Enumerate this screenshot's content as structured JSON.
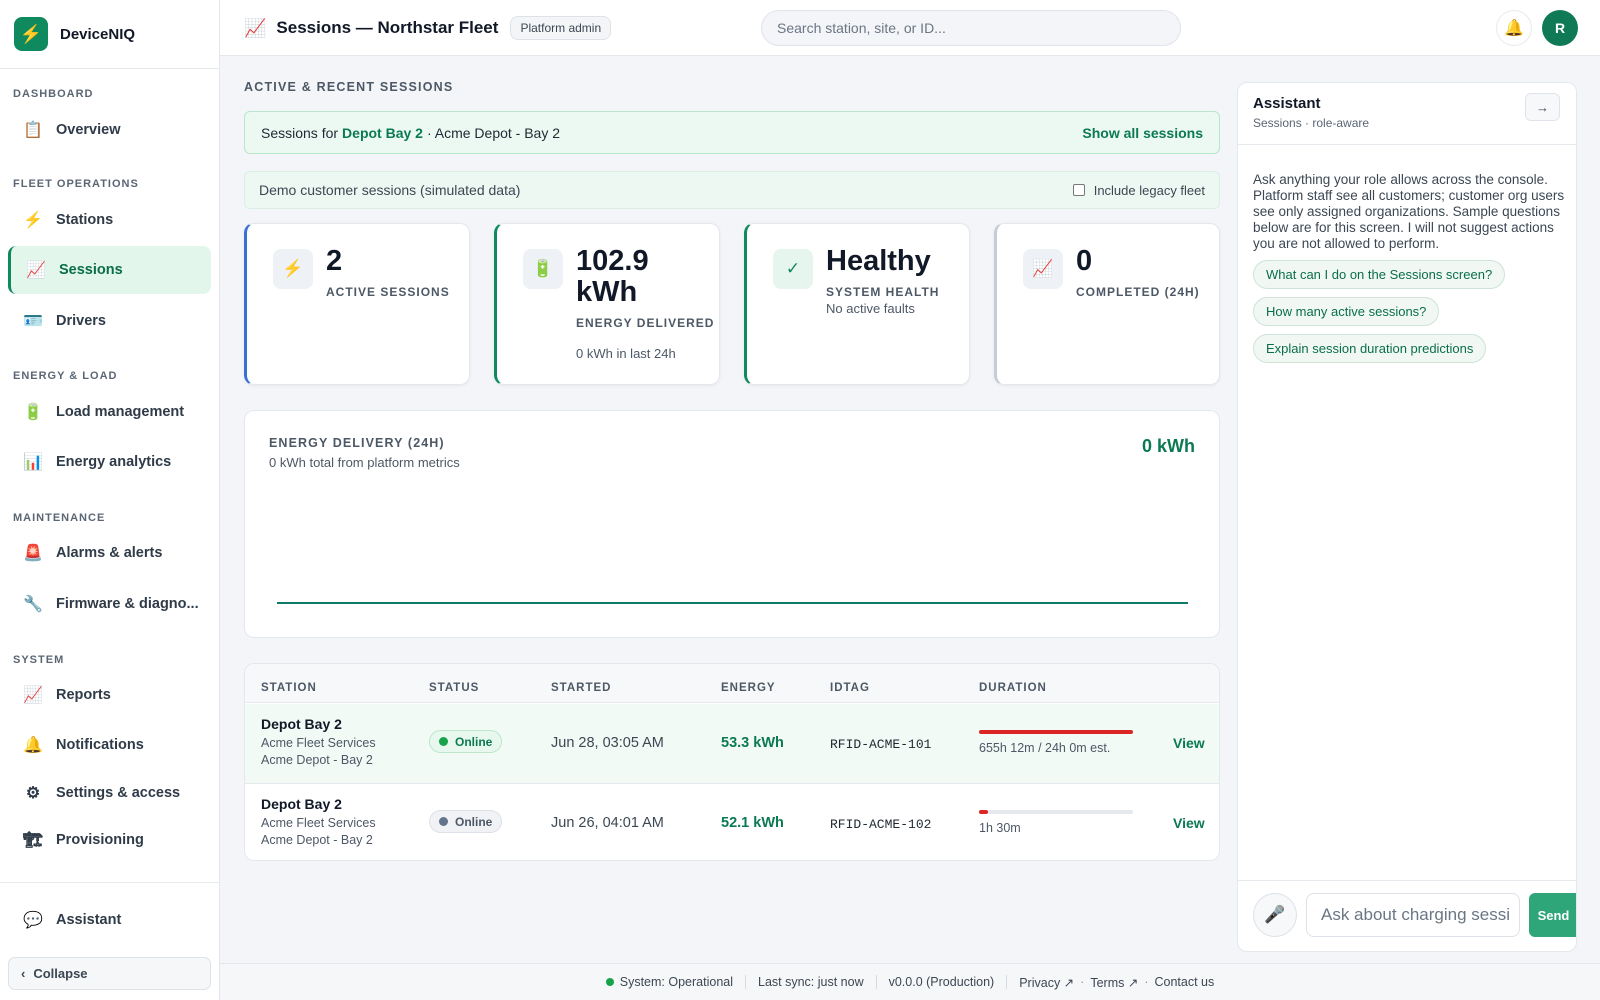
{
  "brand": {
    "name": "DeviceNIQ",
    "logo_icon": "⚡"
  },
  "sidebar": {
    "sections": [
      "DASHBOARD",
      "FLEET OPERATIONS",
      "ENERGY & LOAD",
      "MAINTENANCE",
      "SYSTEM"
    ],
    "items": [
      {
        "label": "Overview",
        "icon": "📋"
      },
      {
        "label": "Stations",
        "icon": "⚡"
      },
      {
        "label": "Sessions",
        "icon": "📈",
        "active": true
      },
      {
        "label": "Drivers",
        "icon": "🪪"
      },
      {
        "label": "Load management",
        "icon": "🔋"
      },
      {
        "label": "Energy analytics",
        "icon": "📊"
      },
      {
        "label": "Alarms & alerts",
        "icon": "🚨"
      },
      {
        "label": "Firmware & diagno...",
        "icon": "🔧"
      },
      {
        "label": "Reports",
        "icon": "📈"
      },
      {
        "label": "Notifications",
        "icon": "🔔"
      },
      {
        "label": "Settings & access",
        "icon": "⚙"
      },
      {
        "label": "Provisioning",
        "icon": "🏗"
      },
      {
        "label": "Assistant",
        "icon": "💬"
      }
    ],
    "collapse_label": "Collapse",
    "collapse_icon": "‹"
  },
  "topbar": {
    "title": "Sessions — Northstar Fleet",
    "title_icon": "📈",
    "role_badge": "Platform admin",
    "search_placeholder": "Search station, site, or ID...",
    "bell_icon": "🔔",
    "avatar_initial": "R"
  },
  "main": {
    "section_title": "ACTIVE & RECENT SESSIONS",
    "filter": {
      "prefix": "Sessions for",
      "station": "Depot Bay 2",
      "site": "· Acme Depot - Bay 2",
      "show_all": "Show all sessions"
    },
    "demo": {
      "text": "Demo customer sessions (simulated data)",
      "legacy_label": "Include legacy fleet"
    },
    "kpis": [
      {
        "icon": "⚡",
        "value": "2",
        "label": "ACTIVE SESSIONS",
        "sub": "",
        "accent": "#3b6fd6"
      },
      {
        "icon": "🔋",
        "value": "102.9 kWh",
        "label": "ENERGY DELIVERED",
        "sub": "0 kWh in last 24h",
        "accent": "#0f8a5f"
      },
      {
        "icon": "✓",
        "value": "Healthy",
        "label": "SYSTEM HEALTH",
        "sub": "No active faults",
        "accent": "#0f8a5f"
      },
      {
        "icon": "📈",
        "value": "0",
        "label": "COMPLETED (24H)",
        "sub": "",
        "accent": "#c5ced8"
      }
    ],
    "chart": {
      "title": "ENERGY DELIVERY (24H)",
      "subtitle": "0 kWh total from platform metrics",
      "total": "0 kWh"
    },
    "table": {
      "headers": [
        "STATION",
        "STATUS",
        "STARTED",
        "ENERGY",
        "IDTAG",
        "DURATION"
      ],
      "rows": [
        {
          "station": "Depot Bay 2",
          "org": "Acme Fleet Services",
          "site": "Acme Depot - Bay 2",
          "status": "Online",
          "status_color": "green",
          "started": "Jun 28, 03:05 AM",
          "energy": "53.3 kWh",
          "idtag": "RFID-ACME-101",
          "duration_progress": 1.0,
          "duration": "655h 12m / 24h 0m est.",
          "action": "View"
        },
        {
          "station": "Depot Bay 2",
          "org": "Acme Fleet Services",
          "site": "Acme Depot - Bay 2",
          "status": "Online",
          "status_color": "gray",
          "started": "Jun 26, 04:01 AM",
          "energy": "52.1 kWh",
          "idtag": "RFID-ACME-102",
          "duration_progress": 0.06,
          "duration": "1h 30m",
          "action": "View"
        }
      ]
    }
  },
  "assistant": {
    "title": "Assistant",
    "subtitle": "Sessions · role-aware",
    "collapse_icon": "→",
    "intro": "Ask anything your role allows across the console. Platform staff see all customers; customer org users see only assigned organizations. Sample questions below are for this screen. I will not suggest actions you are not allowed to perform.",
    "suggestions": [
      "What can I do on the Sessions screen?",
      "How many active sessions?",
      "Explain session duration predictions"
    ],
    "mic_icon": "🎤",
    "input_placeholder": "Ask about charging sessi",
    "send_label": "Send"
  },
  "footer": {
    "status": "System: Operational",
    "sync": "Last sync: just now",
    "version": "v0.0.0 (Production)",
    "privacy": "Privacy ↗",
    "terms": "Terms ↗",
    "contact": "Contact us"
  }
}
